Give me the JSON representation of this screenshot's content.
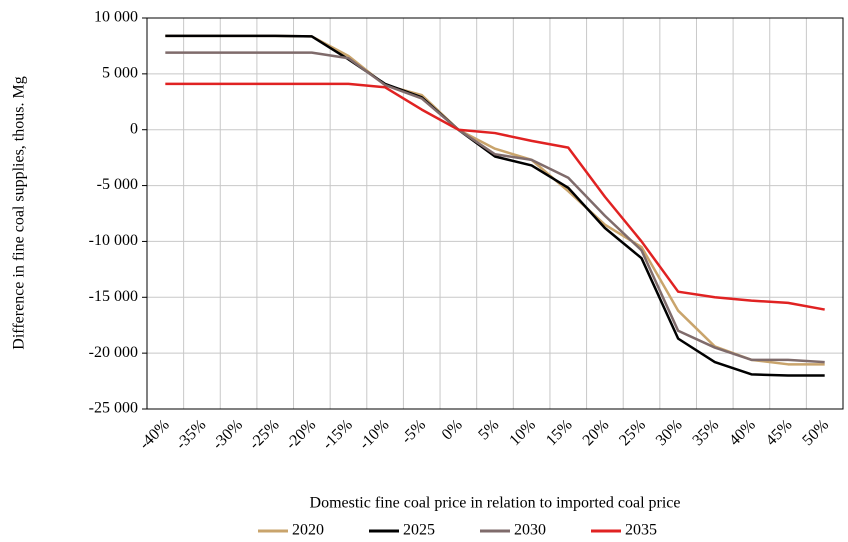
{
  "chart_data": {
    "type": "line",
    "y_label": "Difference in fine coal supplies, thous. Mg",
    "x_label": "Domestic fine coal price in relation to imported coal price",
    "categories": [
      "-40%",
      "-35%",
      "-30%",
      "-25%",
      "-20%",
      "-15%",
      "-10%",
      "-5%",
      "0%",
      "5%",
      "10%",
      "15%",
      "20%",
      "25%",
      "30%",
      "35%",
      "40%",
      "45%",
      "50%"
    ],
    "series": [
      {
        "name": "2020",
        "color": "#c9a46c",
        "values": [
          8400,
          8400,
          8400,
          8400,
          8350,
          6600,
          4000,
          3100,
          0,
          -1700,
          -2700,
          -5500,
          -8500,
          -10500,
          -16200,
          -19400,
          -20600,
          -21000,
          -21000
        ]
      },
      {
        "name": "2025",
        "color": "#000000",
        "values": [
          8400,
          8400,
          8400,
          8400,
          8350,
          6300,
          4100,
          2900,
          0,
          -2400,
          -3200,
          -5200,
          -8800,
          -11500,
          -18700,
          -20800,
          -21900,
          -22000,
          -22000
        ]
      },
      {
        "name": "2030",
        "color": "#7f6b6b",
        "values": [
          6900,
          6900,
          6900,
          6900,
          6900,
          6400,
          4000,
          2800,
          0,
          -2200,
          -2700,
          -4300,
          -7700,
          -10800,
          -18000,
          -19500,
          -20600,
          -20600,
          -20800
        ]
      },
      {
        "name": "2035",
        "color": "#e02222",
        "values": [
          4100,
          4100,
          4100,
          4100,
          4100,
          4100,
          3800,
          1800,
          0,
          -300,
          -1000,
          -1600,
          -6000,
          -10000,
          -14500,
          -15000,
          -15300,
          -15500,
          -16100
        ]
      }
    ],
    "ylim": [
      -25000,
      10000
    ],
    "yticks": [
      {
        "value": -25000,
        "label": "-25 000"
      },
      {
        "value": -20000,
        "label": "-20 000"
      },
      {
        "value": -15000,
        "label": "-15 000"
      },
      {
        "value": -10000,
        "label": "-10 000"
      },
      {
        "value": -5000,
        "label": "-5 000"
      },
      0,
      {
        "value": 5000,
        "label": "5 000"
      },
      {
        "value": 10000,
        "label": "10 000"
      }
    ],
    "grid": true,
    "legend": "bottom"
  }
}
